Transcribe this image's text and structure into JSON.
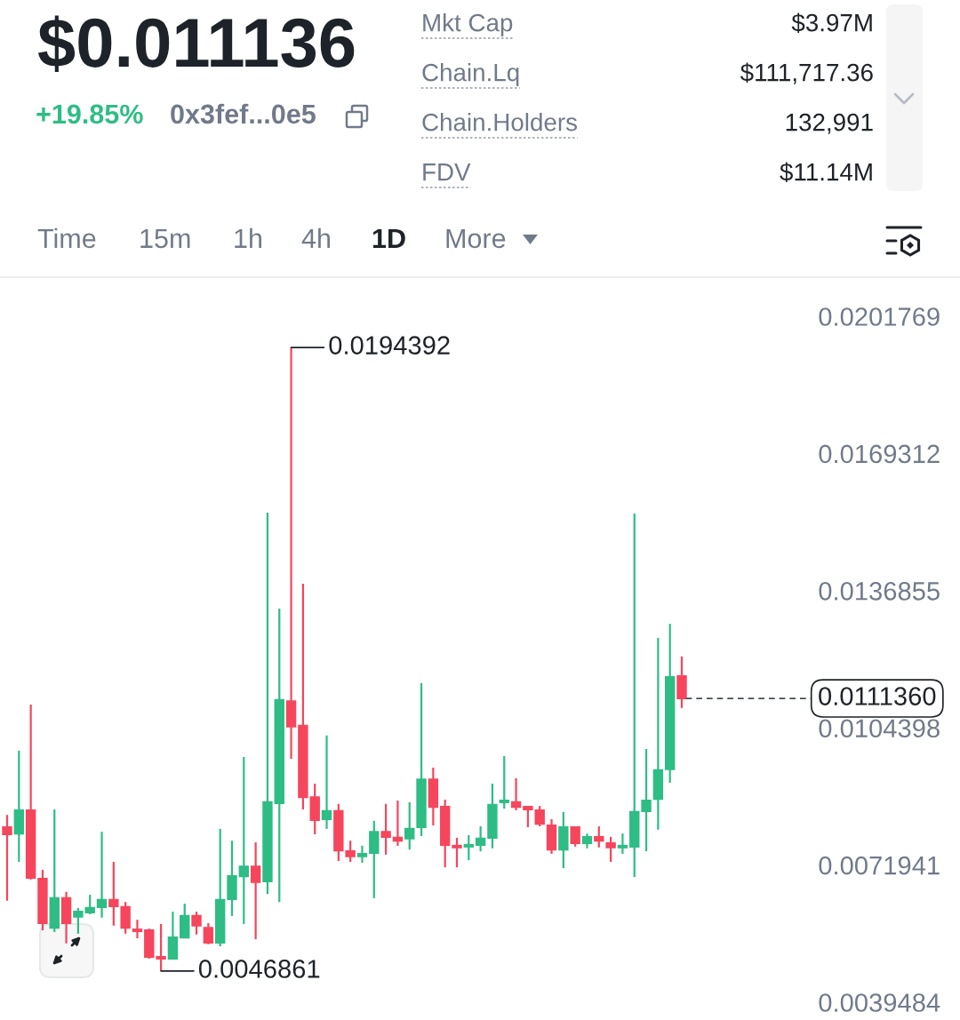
{
  "chart_data": {
    "type": "candlestick",
    "title": "$0.011136",
    "annotations": [
      "+19.85%",
      "0x3fef...0e5",
      "Mkt Cap",
      "$3.97M",
      "Chain.Lq",
      "$111,717.36",
      "Chain.Holders",
      "132,991",
      "FDV",
      "$11.14M",
      "Time",
      "15m",
      "1h",
      "4h",
      "1D",
      "More",
      "0.0194392",
      "0.0046861"
    ],
    "categories": [
      null,
      null,
      null,
      null,
      null,
      null,
      null,
      null,
      null,
      null,
      null,
      null,
      null,
      null,
      null,
      null,
      null,
      null,
      null,
      null,
      null,
      null,
      null,
      null,
      null,
      null,
      null,
      null,
      null,
      null,
      null,
      null,
      null,
      null,
      null,
      null,
      null,
      null,
      null,
      null,
      null,
      null,
      null,
      null,
      null,
      null,
      null,
      null,
      null,
      null,
      null,
      null,
      null,
      null,
      null,
      null,
      null,
      null
    ],
    "ohlc": [
      [
        0.00809,
        0.00838,
        0.00635,
        0.00792
      ],
      [
        0.00794,
        0.0099,
        0.00727,
        0.00849
      ],
      [
        0.00849,
        0.01099,
        0.00685,
        0.00689
      ],
      [
        0.00687,
        0.00708,
        0.00565,
        0.00582
      ],
      [
        0.00571,
        0.00851,
        0.00561,
        0.00641
      ],
      [
        0.00641,
        0.00656,
        0.00534,
        0.00582
      ],
      [
        0.00597,
        0.00618,
        0.00557,
        0.00609
      ],
      [
        0.00607,
        0.00649,
        0.00603,
        0.00618
      ],
      [
        0.0062,
        0.00798,
        0.00595,
        0.00637
      ],
      [
        0.00637,
        0.00727,
        0.00576,
        0.00622
      ],
      [
        0.0062,
        0.00632,
        0.00557,
        0.00571
      ],
      [
        0.00567,
        0.0059,
        0.00546,
        0.00563
      ],
      [
        0.00565,
        0.00569,
        0.00498,
        0.00502
      ],
      [
        0.00502,
        0.0058,
        0.0046861,
        0.00498
      ],
      [
        0.00498,
        0.00609,
        0.00496,
        0.00548
      ],
      [
        0.00548,
        0.00628,
        0.00546,
        0.00599
      ],
      [
        0.00599,
        0.00609,
        0.00555,
        0.00576
      ],
      [
        0.00571,
        0.00582,
        0.00532,
        0.00536
      ],
      [
        0.00536,
        0.00805,
        0.00527,
        0.00637
      ],
      [
        0.00639,
        0.00777,
        0.00599,
        0.00693
      ],
      [
        0.00693,
        0.00975,
        0.0058,
        0.00716
      ],
      [
        0.00716,
        0.00773,
        0.00544,
        0.00679
      ],
      [
        0.00681,
        0.01553,
        0.00651,
        0.00868
      ],
      [
        0.00866,
        0.01326,
        0.00632,
        0.0111
      ],
      [
        0.01107,
        0.0194392,
        0.00971,
        0.01047
      ],
      [
        0.01049,
        0.01385,
        0.00851,
        0.0088
      ],
      [
        0.0088,
        0.00912,
        0.00792,
        0.00826
      ],
      [
        0.00828,
        0.01026,
        0.00805,
        0.00847
      ],
      [
        0.00847,
        0.00864,
        0.00729,
        0.00754
      ],
      [
        0.00752,
        0.00777,
        0.00727,
        0.0074
      ],
      [
        0.0074,
        0.00765,
        0.00725,
        0.00746
      ],
      [
        0.00748,
        0.00824,
        0.00641,
        0.00798
      ],
      [
        0.00798,
        0.00864,
        0.00744,
        0.00786
      ],
      [
        0.00784,
        0.00872,
        0.00765,
        0.00777
      ],
      [
        0.00782,
        0.00868,
        0.00756,
        0.00805
      ],
      [
        0.00809,
        0.0115,
        0.00788,
        0.00922
      ],
      [
        0.00922,
        0.0095,
        0.00813,
        0.00857
      ],
      [
        0.00857,
        0.00874,
        0.00714,
        0.00767
      ],
      [
        0.00765,
        0.00784,
        0.00714,
        0.00761
      ],
      [
        0.00763,
        0.0079,
        0.00731,
        0.00767
      ],
      [
        0.00767,
        0.00811,
        0.00752,
        0.00782
      ],
      [
        0.00784,
        0.00912,
        0.00759,
        0.00862
      ],
      [
        0.00868,
        0.00977,
        0.00853,
        0.00872
      ],
      [
        0.00868,
        0.00925,
        0.00849,
        0.00857
      ],
      [
        0.00857,
        0.00859,
        0.00809,
        0.00851
      ],
      [
        0.00849,
        0.00859,
        0.00811,
        0.00817
      ],
      [
        0.00813,
        0.00828,
        0.00746,
        0.00756
      ],
      [
        0.00756,
        0.00845,
        0.00712,
        0.00809
      ],
      [
        0.00809,
        0.00811,
        0.00763,
        0.00771
      ],
      [
        0.00771,
        0.00794,
        0.00759,
        0.00786
      ],
      [
        0.00786,
        0.00811,
        0.00761,
        0.00777
      ],
      [
        0.00771,
        0.00786,
        0.00727,
        0.00761
      ],
      [
        0.00761,
        0.00794,
        0.00746,
        0.00765
      ],
      [
        0.00763,
        0.01551,
        0.00691,
        0.00845
      ],
      [
        0.00847,
        0.00994,
        0.00752,
        0.00872
      ],
      [
        0.00876,
        0.01257,
        0.00803,
        0.00944
      ],
      [
        0.00946,
        0.0129,
        0.00914,
        0.01164
      ],
      [
        0.01166,
        0.01213,
        0.01091,
        0.011136
      ]
    ],
    "colors": [
      "#f6465d",
      "#2ebd85",
      "#f6465d",
      "#f6465d",
      "#2ebd85",
      "#f6465d",
      "#2ebd85",
      "#2ebd85",
      "#2ebd85",
      "#f6465d",
      "#f6465d",
      "#f6465d",
      "#f6465d",
      "#f6465d",
      "#2ebd85",
      "#2ebd85",
      "#f6465d",
      "#f6465d",
      "#2ebd85",
      "#2ebd85",
      "#2ebd85",
      "#f6465d",
      "#2ebd85",
      "#2ebd85",
      "#f6465d",
      "#f6465d",
      "#f6465d",
      "#2ebd85",
      "#f6465d",
      "#f6465d",
      "#2ebd85",
      "#2ebd85",
      "#f6465d",
      "#f6465d",
      "#2ebd85",
      "#2ebd85",
      "#f6465d",
      "#f6465d",
      "#f6465d",
      "#2ebd85",
      "#2ebd85",
      "#2ebd85",
      "#2ebd85",
      "#f6465d",
      "#f6465d",
      "#f6465d",
      "#f6465d",
      "#2ebd85",
      "#f6465d",
      "#2ebd85",
      "#f6465d",
      "#f6465d",
      "#2ebd85",
      "#2ebd85",
      "#2ebd85",
      "#2ebd85",
      "#2ebd85",
      "#f6465d"
    ],
    "ylim": [
      0.0039484,
      0.0201769
    ],
    "yticks": [
      0.0039484,
      0.0071941,
      0.0104398,
      0.0136855,
      0.0169312,
      0.0201769
    ],
    "ref_lines": [
      {
        "axis": "y",
        "value": 0.011136,
        "label": "0.0111360",
        "line_style": "dashed"
      }
    ],
    "tick_labels": "y"
  }
}
